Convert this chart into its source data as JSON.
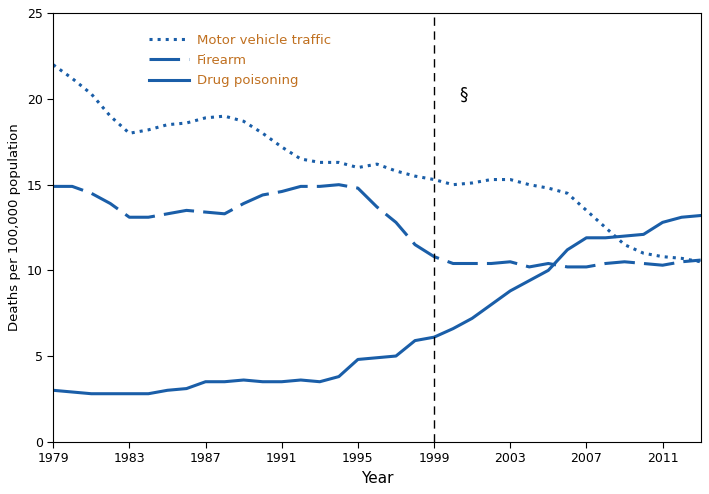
{
  "years": [
    1979,
    1980,
    1981,
    1982,
    1983,
    1984,
    1985,
    1986,
    1987,
    1988,
    1989,
    1990,
    1991,
    1992,
    1993,
    1994,
    1995,
    1996,
    1997,
    1998,
    1999,
    2000,
    2001,
    2002,
    2003,
    2004,
    2005,
    2006,
    2007,
    2008,
    2009,
    2010,
    2011,
    2012,
    2013
  ],
  "motor_vehicle": [
    22.0,
    21.2,
    20.3,
    19.0,
    18.0,
    18.2,
    18.5,
    18.6,
    18.9,
    19.0,
    18.7,
    18.0,
    17.2,
    16.5,
    16.3,
    16.3,
    16.0,
    16.2,
    15.8,
    15.5,
    15.3,
    15.0,
    15.1,
    15.3,
    15.3,
    15.0,
    14.8,
    14.5,
    13.5,
    12.5,
    11.5,
    11.0,
    10.8,
    10.7,
    10.5
  ],
  "firearm": [
    14.9,
    14.9,
    14.5,
    13.9,
    13.1,
    13.1,
    13.3,
    13.5,
    13.4,
    13.3,
    13.9,
    14.4,
    14.6,
    14.9,
    14.9,
    15.0,
    14.8,
    13.7,
    12.8,
    11.5,
    10.8,
    10.4,
    10.4,
    10.4,
    10.5,
    10.2,
    10.4,
    10.2,
    10.2,
    10.4,
    10.5,
    10.4,
    10.3,
    10.5,
    10.6
  ],
  "drug_poisoning": [
    3.0,
    2.9,
    2.8,
    2.8,
    2.8,
    2.8,
    3.0,
    3.1,
    3.5,
    3.5,
    3.6,
    3.5,
    3.5,
    3.6,
    3.5,
    3.8,
    4.8,
    4.9,
    5.0,
    5.9,
    6.1,
    6.6,
    7.2,
    8.0,
    8.8,
    9.4,
    10.0,
    11.2,
    11.9,
    11.9,
    12.0,
    12.1,
    12.8,
    13.1,
    13.2
  ],
  "line_color": "#1a5ea8",
  "legend_text_color": "#c07020",
  "dashed_line_x": 1999,
  "ylabel": "Deaths per 100,000 population",
  "xlabel": "Year",
  "ylim": [
    0,
    25
  ],
  "yticks": [
    0,
    5,
    10,
    15,
    20,
    25
  ],
  "xticks": [
    1979,
    1983,
    1987,
    1991,
    1995,
    1999,
    2003,
    2007,
    2011
  ],
  "legend_labels": [
    "Motor vehicle traffic",
    "Firearm",
    "Drug poisoning"
  ],
  "section_symbol": "§",
  "section_symbol_x": 2000.3,
  "section_symbol_y": 20.8,
  "xlim": [
    1979,
    2013
  ]
}
